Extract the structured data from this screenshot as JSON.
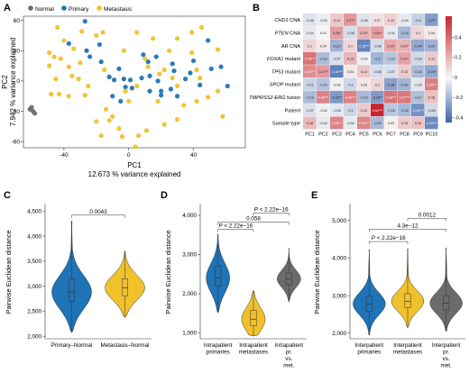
{
  "colors": {
    "normal": "#6b6b6b",
    "primary": "#1f73b7",
    "metastasis": "#f0c12a",
    "heat_low": "#3a63ad",
    "heat_mid": "#f7f7f7",
    "heat_high": "#c7252b"
  },
  "chart_data": [
    {
      "panel": "A",
      "type": "scatter",
      "title": "",
      "xlabel": "PC1",
      "xlabel_sub": "12.673 % variance explained",
      "ylabel": "PC2",
      "ylabel_sub": "7.942 % variance explained",
      "xlim": [
        -65,
        72
      ],
      "ylim": [
        -66,
        64
      ],
      "xticks": [
        -40,
        0,
        40
      ],
      "yticks": [
        -60,
        -30,
        0,
        30,
        60
      ],
      "legend": [
        "Normal",
        "Primary",
        "Metastasis"
      ],
      "series": [
        {
          "name": "Normal",
          "points": [
            [
              -60,
              -26
            ],
            [
              -59,
              -30
            ],
            [
              -61,
              -28
            ],
            [
              -58,
              -32
            ]
          ]
        },
        {
          "name": "Primary",
          "points": [
            [
              -27,
              59
            ],
            [
              -37,
              37
            ],
            [
              -18,
              36
            ],
            [
              -26,
              30
            ],
            [
              -17,
              19
            ],
            [
              -6,
              12
            ],
            [
              -24,
              24
            ],
            [
              9,
              26
            ],
            [
              12,
              19
            ],
            [
              17,
              24
            ],
            [
              27,
              17
            ],
            [
              28,
              10
            ],
            [
              -12,
              4
            ],
            [
              -9,
              1
            ],
            [
              -3,
              2
            ],
            [
              1,
              1
            ],
            [
              8,
              3
            ],
            [
              13,
              5
            ],
            [
              2,
              -7
            ],
            [
              -10,
              -15
            ],
            [
              -2,
              -6
            ],
            [
              20,
              -10
            ],
            [
              20,
              -14
            ],
            [
              26,
              -8
            ],
            [
              18,
              0
            ],
            [
              35,
              2
            ],
            [
              38,
              8
            ],
            [
              51,
              12
            ],
            [
              61,
              -5
            ],
            [
              40,
              20
            ],
            [
              49,
              40
            ],
            [
              -5,
              -20
            ],
            [
              13,
              -10
            ],
            [
              30,
              -15
            ],
            [
              57,
              14
            ],
            [
              44,
              -4
            ]
          ]
        },
        {
          "name": "Metastasis",
          "points": [
            [
              -44,
              53
            ],
            [
              -29,
              49
            ],
            [
              -20,
              45
            ],
            [
              -16,
              48
            ],
            [
              5,
              48
            ],
            [
              15,
              42
            ],
            [
              30,
              42
            ],
            [
              39,
              48
            ],
            [
              45,
              53
            ],
            [
              -40,
              40
            ],
            [
              -34,
              32
            ],
            [
              -49,
              28
            ],
            [
              -46,
              24
            ],
            [
              -42,
              22
            ],
            [
              -37,
              14
            ],
            [
              -49,
              15
            ],
            [
              -30,
              18
            ],
            [
              -35,
              5
            ],
            [
              -31,
              2
            ],
            [
              -45,
              2
            ],
            [
              -48,
              -13
            ],
            [
              -43,
              -13
            ],
            [
              -37,
              -15
            ],
            [
              -27,
              -14
            ],
            [
              -14,
              -28
            ],
            [
              -10,
              -35
            ],
            [
              -20,
              -40
            ],
            [
              -17,
              -54
            ],
            [
              -12,
              -39
            ],
            [
              -2,
              -10
            ],
            [
              5,
              -5
            ],
            [
              0,
              -20
            ],
            [
              -15,
              11
            ],
            [
              12,
              14
            ],
            [
              22,
              11
            ],
            [
              10,
              22
            ],
            [
              19,
              7
            ],
            [
              27,
              3
            ],
            [
              44,
              3
            ],
            [
              42,
              11
            ],
            [
              39,
              28
            ],
            [
              55,
              31
            ],
            [
              55,
              -10
            ],
            [
              58,
              -35
            ],
            [
              30,
              -38
            ],
            [
              22,
              -43
            ],
            [
              11,
              -49
            ],
            [
              6,
              -54
            ],
            [
              4,
              -65
            ],
            [
              18,
              -20
            ],
            [
              34,
              -24
            ],
            [
              42,
              -20
            ],
            [
              -25,
              -5
            ],
            [
              -3,
              30
            ],
            [
              25,
              30
            ],
            [
              -6,
              -47
            ],
            [
              -4,
              -55
            ],
            [
              30,
              -5
            ],
            [
              49,
              -16
            ]
          ]
        }
      ]
    },
    {
      "panel": "B",
      "type": "heatmap",
      "rows": [
        "CHD1 CNA",
        "PTEN CNA",
        "AR CNA",
        "FOXA1 mutant",
        "TP53 mutant",
        "SPOP mutant",
        "TMPRSS2-ERG fusion",
        "Patient",
        "Sample type"
      ],
      "rows_italic_part": [
        "CHD1",
        "PTEN",
        "",
        "FOXA1",
        "TP53",
        "SPOP",
        "TMPRSS2-ERG",
        "",
        ""
      ],
      "rows_plain_part": [
        " CNA",
        " CNA",
        "AR CNA",
        " mutant",
        " mutant",
        " mutant",
        " fusion",
        "Patient",
        "Sample type"
      ],
      "columns": [
        "PC1",
        "PC2",
        "PC3",
        "PC4",
        "PC5",
        "PC6",
        "PC7",
        "PC8",
        "PC9",
        "PC10"
      ],
      "values": [
        [
          -0.06,
          -0.03,
          0.14,
          0.27,
          -0.06,
          0.07,
          0.12,
          -0.04,
          -0.11,
          -0.27
        ],
        [
          -0.04,
          0.01,
          0.26,
          -0.08,
          0.2,
          0.26,
          -0.04,
          -0.19,
          0.1,
          0.04
        ],
        [
          0.1,
          0.04,
          -0.21,
          0.1,
          -0.35,
          -0.08,
          0.23,
          0.2,
          -0.24,
          -0.21
        ],
        [
          0.38,
          -0.18,
          -0.07,
          0.19,
          -0.02,
          -0.2,
          -0.15,
          0.24,
          -0.09,
          0.13
        ],
        [
          0.31,
          0.27,
          -0.36,
          0.04,
          0.14,
          -0.08,
          -0.07,
          0.13,
          -0.18,
          -0.24
        ],
        [
          -0.11,
          -0.16,
          -0.02,
          -0.1,
          0.05,
          0.1,
          -0.26,
          -0.2,
          -0.05,
          0.35
        ],
        [
          -0.18,
          0.34,
          -0.28,
          0.34,
          -0.19,
          -0.28,
          0.38,
          0.37,
          -0.17,
          0.16
        ],
        [
          -0.07,
          -0.02,
          -0.05,
          -0.1,
          0.13,
          0.61,
          -0.15,
          -0.19,
          -0.31,
          -0.09
        ],
        [
          0.18,
          -0.04,
          0.33,
          -0.04,
          0.33,
          -0.19,
          0.02,
          0.13,
          0.15,
          -0.33
        ]
      ],
      "labels": [
        [
          "-0.06",
          "-0.03",
          "0.14",
          "0.27*",
          "-0.06",
          "0.07",
          "0.12",
          "-0.04",
          "-0.11",
          "-0.27*"
        ],
        [
          "-0.04",
          "0.01",
          "0.26*",
          "-0.08",
          "0.20*",
          "0.26*",
          "-0.04",
          "-0.19",
          "0.1",
          "0.04"
        ],
        [
          "0.1",
          "0.04",
          "-0.21*",
          "0.1",
          "-0.35***",
          "-0.08",
          "0.23*",
          "0.20*",
          "-0.24*",
          "-0.21*"
        ],
        [
          "0.38***",
          "-0.18",
          "-0.07",
          "0.19",
          "-0.02",
          "-0.2",
          "-0.15",
          "0.24*",
          "-0.09",
          "0.13"
        ],
        [
          "0.31***",
          "0.27**",
          "-0.36***",
          "0.04",
          "0.14",
          "-0.08",
          "-0.07",
          "0.13",
          "-0.18",
          "-0.24*"
        ],
        [
          "-0.11",
          "-0.16",
          "-0.02",
          "-0.1",
          "0.05",
          "0.1",
          "-0.26*",
          "-0.20*",
          "-0.05",
          "0.35***"
        ],
        [
          "-0.18",
          "0.34***",
          "-0.28**",
          "0.34***",
          "-0.19",
          "-0.28**",
          "0.38***",
          "0.37***",
          "-0.17",
          "0.16"
        ],
        [
          "-0.07",
          "-0.02",
          "-0.05",
          "-0.1",
          "0.13",
          "0.61***",
          "-0.15",
          "-0.19",
          "-0.31***",
          "-0.09"
        ],
        [
          "0.18",
          "-0.04",
          "0.33***",
          "-0.04",
          "0.33***",
          "-0.19",
          "0.02",
          "0.13",
          "0.15",
          "-0.33***"
        ]
      ],
      "colorbar_ticks": [
        0.4,
        0.2,
        0,
        -0.2,
        -0.4
      ],
      "colorbar_range": [
        -0.45,
        0.61
      ]
    },
    {
      "panel": "C",
      "type": "violin",
      "ylabel": "Pairwise Euclidean distance",
      "ylim": [
        1950,
        4650
      ],
      "yticks": [
        2000,
        2500,
        3000,
        3500,
        4000,
        4500
      ],
      "categories": [
        "Primary–Normal",
        "Metastasis–Normal"
      ],
      "groups": [
        {
          "name": "Primary–Normal",
          "min": 2080,
          "q1": 2700,
          "median": 2880,
          "q3": 3150,
          "max": 4300
        },
        {
          "name": "Metastasis–Normal",
          "min": 2380,
          "q1": 2810,
          "median": 2970,
          "q3": 3150,
          "max": 3700
        }
      ],
      "comparisons": [
        {
          "from": 0,
          "to": 1,
          "label": "0.0043",
          "y": 4420
        }
      ]
    },
    {
      "panel": "D",
      "type": "violin",
      "ylabel": "Pairwise Euclidean distance",
      "ylim": [
        850,
        4300
      ],
      "yticks": [
        1000,
        2000,
        3000,
        4000
      ],
      "categories": [
        "Intrapatient primaries",
        "Intrapatient metastases",
        "Intrapatient pr. vs. met."
      ],
      "groups": [
        {
          "name": "Intrapatient primaries",
          "min": 1520,
          "q1": 2200,
          "median": 2400,
          "q3": 2700,
          "max": 3520
        },
        {
          "name": "Intrapatient metastases",
          "min": 920,
          "q1": 1180,
          "median": 1350,
          "q3": 1580,
          "max": 2080
        },
        {
          "name": "Intrapatient pr. vs. met.",
          "min": 1800,
          "q1": 2230,
          "median": 2380,
          "q3": 2530,
          "max": 3160
        }
      ],
      "comparisons": [
        {
          "from": 0,
          "to": 1,
          "label": "P < 2.22e−16",
          "y": 3640
        },
        {
          "from": 0,
          "to": 2,
          "label": "0.058",
          "y": 3830
        },
        {
          "from": 1,
          "to": 2,
          "label": "P < 2.22e−16",
          "y": 4060
        }
      ]
    },
    {
      "panel": "E",
      "type": "violin",
      "ylabel": "Pairwise Euclidean distance",
      "ylim": [
        1850,
        5450
      ],
      "yticks": [
        2000,
        3000,
        4000,
        5000
      ],
      "categories": [
        "Interpatient primaries",
        "Interpatient metastases",
        "Interpatient pr. vs. met."
      ],
      "groups": [
        {
          "name": "Interpatient primaries",
          "min": 1950,
          "q1": 2580,
          "median": 2780,
          "q3": 2980,
          "max": 4220
        },
        {
          "name": "Interpatient metastases",
          "min": 2150,
          "q1": 2680,
          "median": 2850,
          "q3": 3050,
          "max": 4250
        },
        {
          "name": "Interpatient pr. vs. met.",
          "min": 2050,
          "q1": 2620,
          "median": 2800,
          "q3": 3000,
          "max": 4270
        }
      ],
      "comparisons": [
        {
          "from": 0,
          "to": 1,
          "label": "P < 2.22e−16",
          "y": 4440
        },
        {
          "from": 0,
          "to": 2,
          "label": "4.3e−12",
          "y": 4770
        },
        {
          "from": 1,
          "to": 2,
          "label": "0.0012",
          "y": 5060
        }
      ]
    }
  ]
}
